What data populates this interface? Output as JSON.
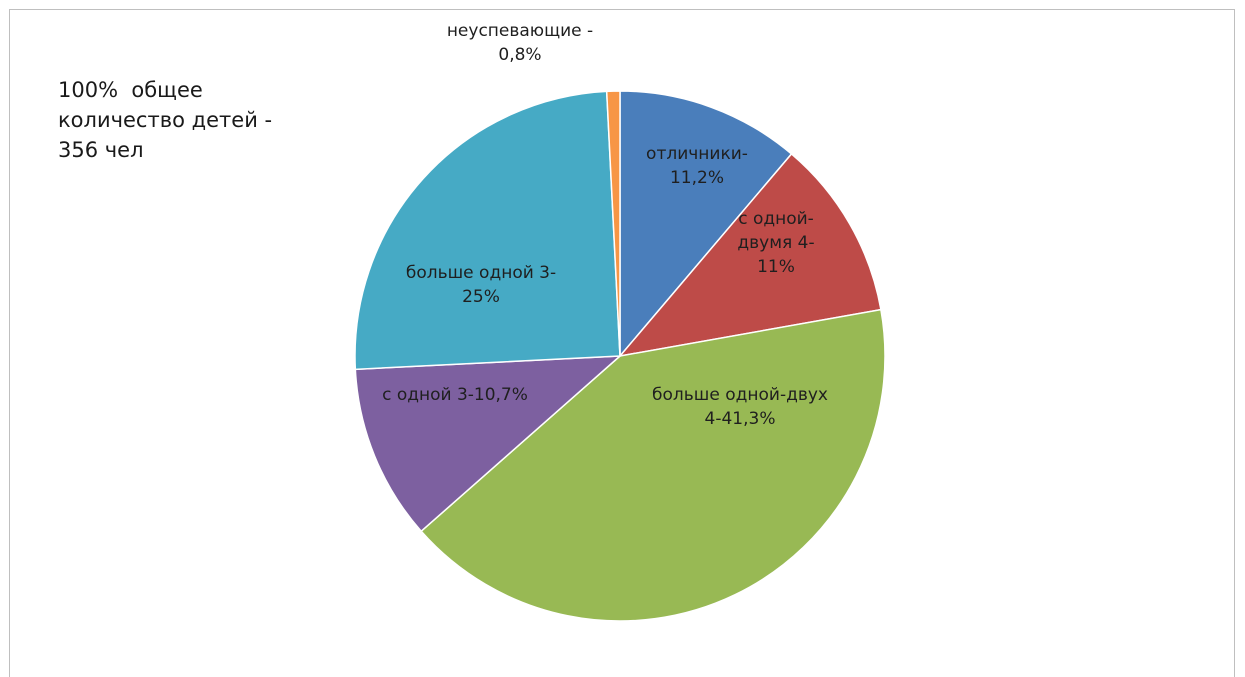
{
  "note": {
    "lines": [
      "100%  общее",
      "количество детей -",
      "356 чел"
    ]
  },
  "chart_data": {
    "type": "pie",
    "start_angle": "top, clockwise",
    "labels_position": "inside slices, outside for the smallest",
    "slices": [
      {
        "category": "отличники",
        "value": 11.2,
        "label_lines": [
          "отличники-",
          "11,2%"
        ],
        "color": "#4a7ebb"
      },
      {
        "category": "с одной-двумя 4",
        "value": 11,
        "label_lines": [
          "с одной-",
          "двумя 4-",
          "11%"
        ],
        "color": "#be4b48"
      },
      {
        "category": "больше одной-двух 4",
        "value": 41.3,
        "label_lines": [
          "больше одной-двух",
          "4-41,3%"
        ],
        "color": "#98b954"
      },
      {
        "category": "с одной 3",
        "value": 10.7,
        "label_lines": [
          "с одной 3-10,7%"
        ],
        "color": "#7d60a0"
      },
      {
        "category": "больше одной 3",
        "value": 25,
        "label_lines": [
          "больше одной 3-",
          "25%"
        ],
        "color": "#46aac5"
      },
      {
        "category": "неуспевающие",
        "value": 0.8,
        "label_lines": [
          "неуспевающие -",
          "0,8%"
        ],
        "color": "#f79646"
      }
    ]
  }
}
